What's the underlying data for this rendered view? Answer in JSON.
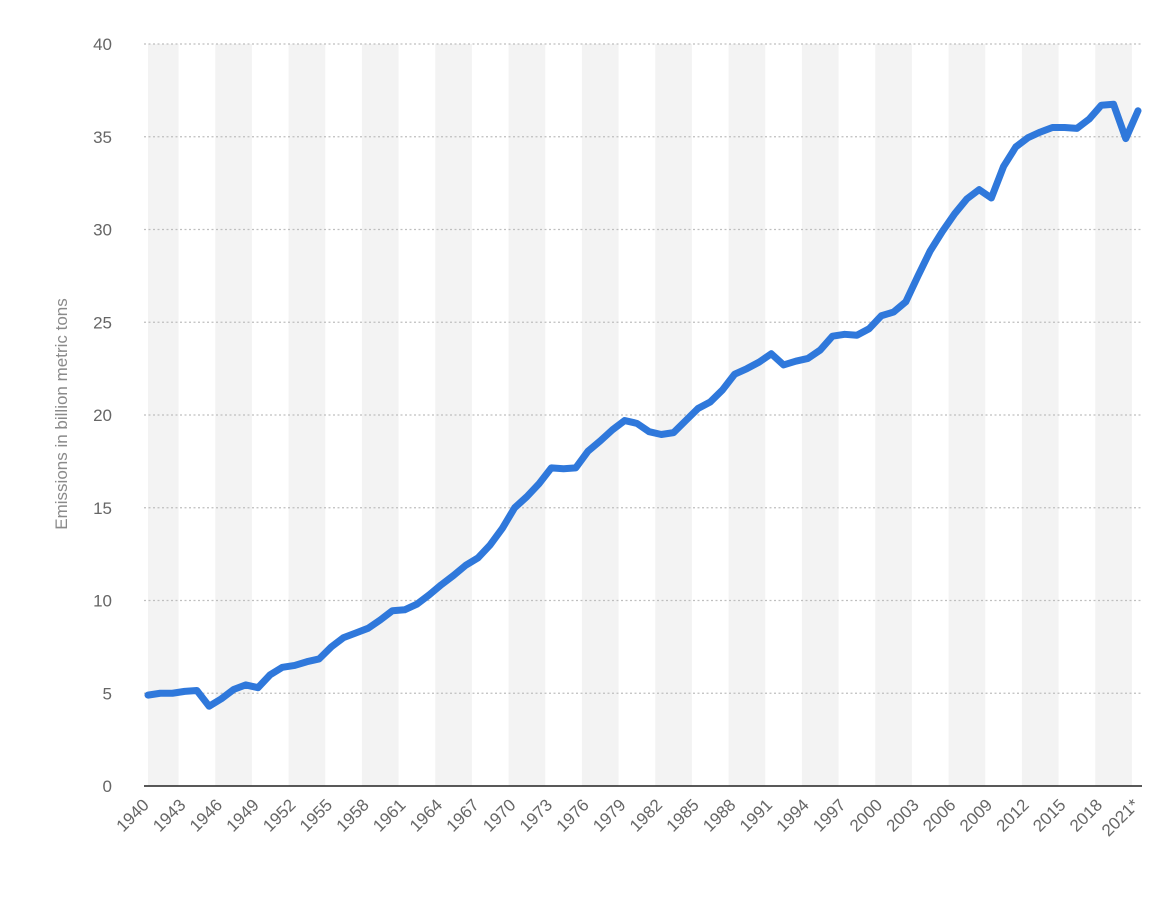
{
  "chart_data": {
    "type": "line",
    "title": "",
    "xlabel": "",
    "ylabel": "Emissions in billion metric tons",
    "ylim": [
      0,
      40
    ],
    "yticks": [
      "0",
      "5",
      "10",
      "15",
      "20",
      "25",
      "30",
      "35",
      "40"
    ],
    "xticks": [
      "1940",
      "1943",
      "1946",
      "1949",
      "1952",
      "1955",
      "1958",
      "1961",
      "1964",
      "1967",
      "1970",
      "1973",
      "1976",
      "1979",
      "1982",
      "1985",
      "1988",
      "1991",
      "1994",
      "1997",
      "2000",
      "2003",
      "2006",
      "2009",
      "2012",
      "2015",
      "2018",
      "2021*"
    ],
    "grid": true,
    "legend": "none",
    "colors": {
      "line": "#2f78db",
      "band": "#f3f3f3",
      "grid": "#bfbfbf",
      "tick_text": "#666666",
      "axis_label": "#8a8a8a",
      "baseline": "#222222"
    },
    "x": [
      "1940",
      "1941",
      "1942",
      "1943",
      "1944",
      "1945",
      "1946",
      "1947",
      "1948",
      "1949",
      "1950",
      "1951",
      "1952",
      "1953",
      "1954",
      "1955",
      "1956",
      "1957",
      "1958",
      "1959",
      "1960",
      "1961",
      "1962",
      "1963",
      "1964",
      "1965",
      "1966",
      "1967",
      "1968",
      "1969",
      "1970",
      "1971",
      "1972",
      "1973",
      "1974",
      "1975",
      "1976",
      "1977",
      "1978",
      "1979",
      "1980",
      "1981",
      "1982",
      "1983",
      "1984",
      "1985",
      "1986",
      "1987",
      "1988",
      "1989",
      "1990",
      "1991",
      "1992",
      "1993",
      "1994",
      "1995",
      "1996",
      "1997",
      "1998",
      "1999",
      "2000",
      "2001",
      "2002",
      "2003",
      "2004",
      "2005",
      "2006",
      "2007",
      "2008",
      "2009",
      "2010",
      "2011",
      "2012",
      "2013",
      "2014",
      "2015",
      "2016",
      "2017",
      "2018",
      "2019",
      "2020",
      "2021*"
    ],
    "series": [
      {
        "values": [
          4.9,
          5.0,
          5.0,
          5.1,
          5.15,
          4.3,
          4.7,
          5.2,
          5.45,
          5.3,
          6.0,
          6.4,
          6.5,
          6.7,
          6.85,
          7.5,
          8.0,
          8.25,
          8.5,
          8.95,
          9.45,
          9.5,
          9.8,
          10.3,
          10.85,
          11.35,
          11.9,
          12.3,
          13.0,
          13.9,
          15.0,
          15.6,
          16.3,
          17.15,
          17.1,
          17.15,
          18.05,
          18.6,
          19.2,
          19.7,
          19.55,
          19.1,
          18.95,
          19.05,
          19.7,
          20.35,
          20.7,
          21.35,
          22.2,
          22.5,
          22.85,
          23.3,
          22.7,
          22.9,
          23.05,
          23.5,
          24.25,
          24.35,
          24.3,
          24.65,
          25.35,
          25.55,
          26.1,
          27.5,
          28.85,
          29.9,
          30.85,
          31.65,
          32.15,
          31.7,
          33.4,
          34.45,
          34.95,
          35.25,
          35.5,
          35.5,
          35.45,
          35.95,
          36.7,
          36.75,
          34.9,
          36.4
        ]
      }
    ]
  }
}
